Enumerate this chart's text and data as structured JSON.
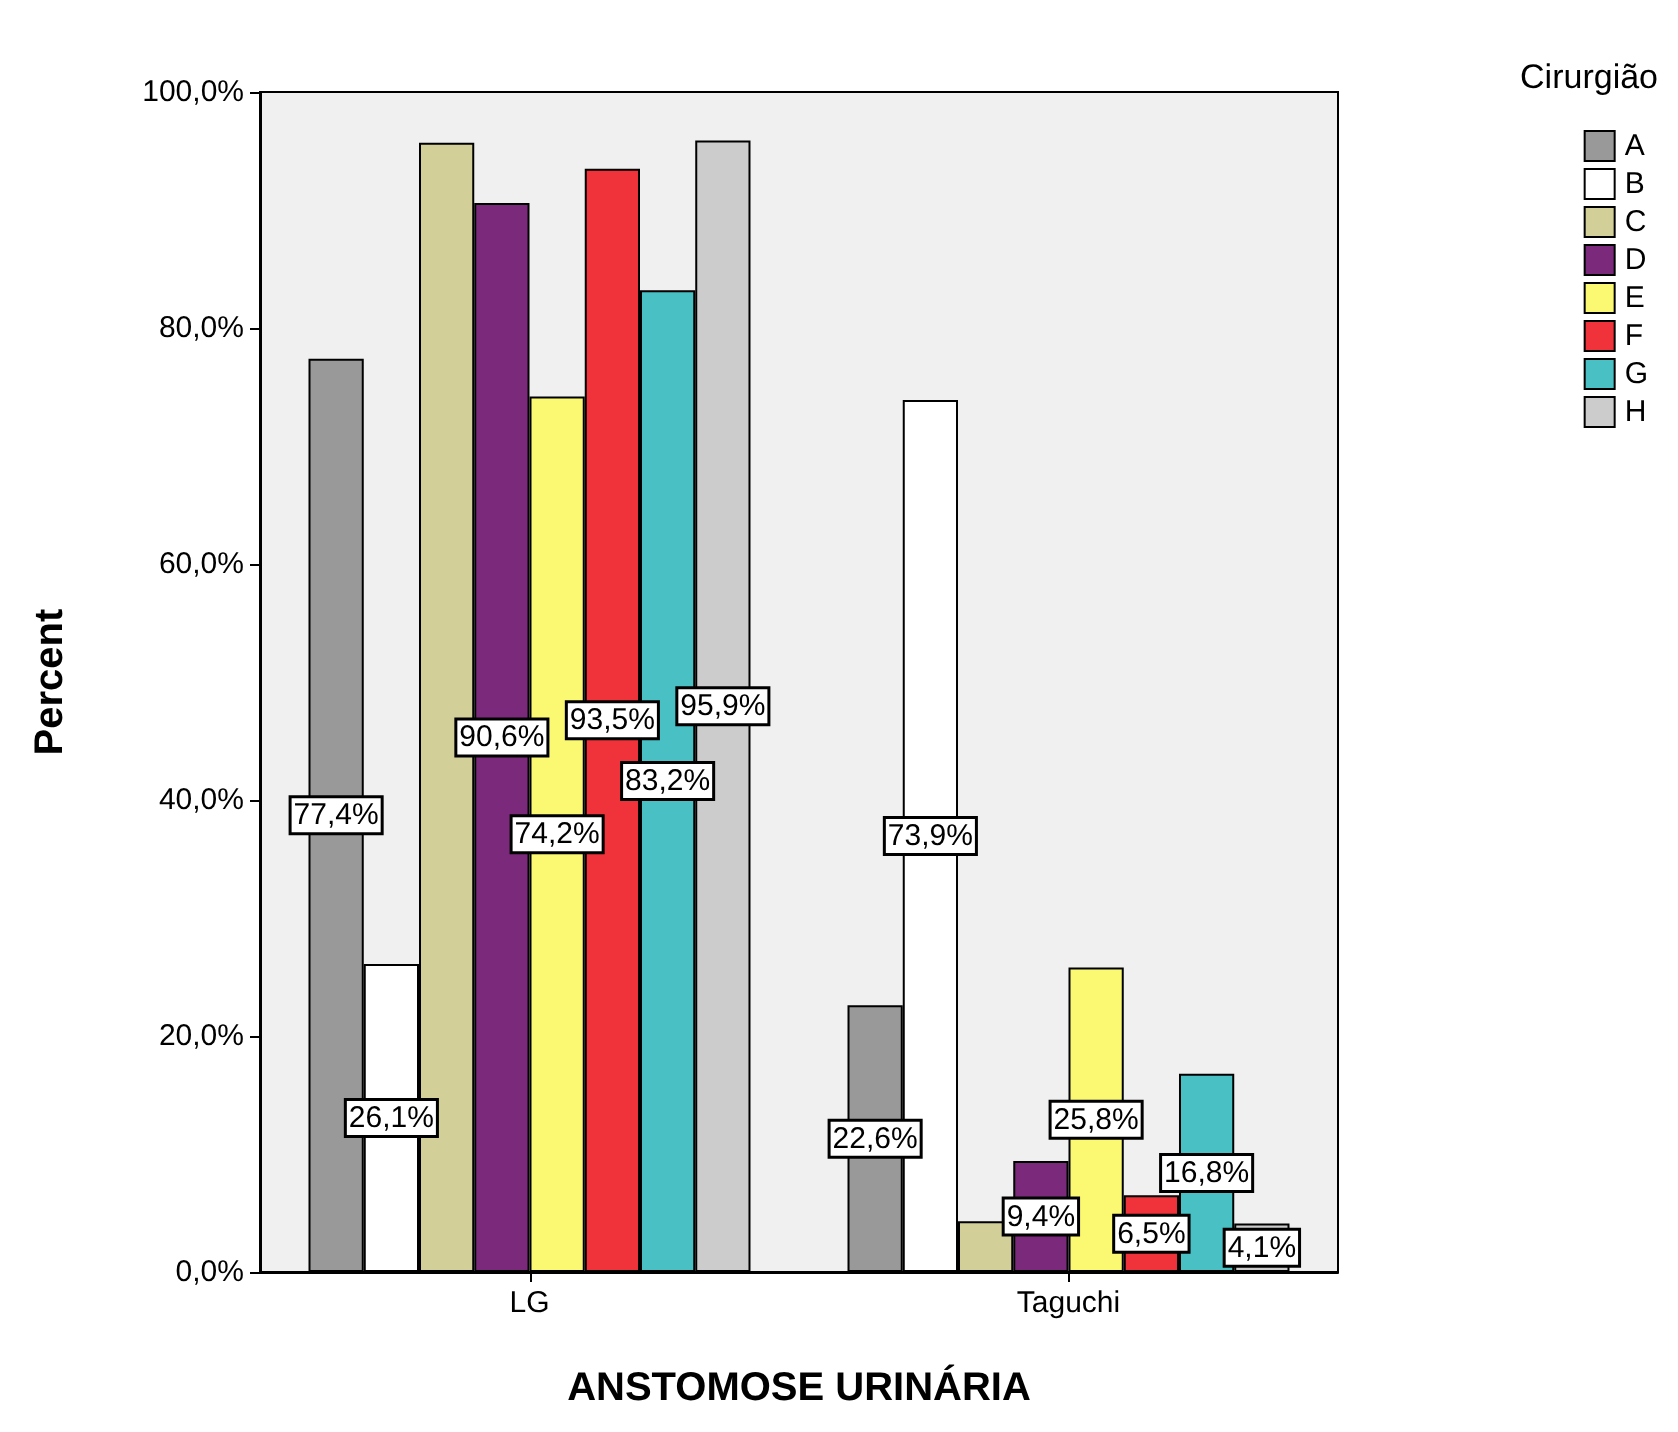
{
  "chart_data": {
    "type": "bar",
    "xlabel": "ANSTOMOSE URINÁRIA",
    "ylabel": "Percent",
    "legend_title": "Cirurgião",
    "legend": "top right",
    "grid": false,
    "categories": [
      "LG",
      "Taguchi"
    ],
    "ylim": [
      0,
      100
    ],
    "yticks": [
      {
        "value": 0,
        "label": "0,0%"
      },
      {
        "value": 20,
        "label": "20,0%"
      },
      {
        "value": 40,
        "label": "40,0%"
      },
      {
        "value": 60,
        "label": "60,0%"
      },
      {
        "value": 80,
        "label": "80,0%"
      },
      {
        "value": 100,
        "label": "100,0%"
      }
    ],
    "series": [
      {
        "name": "A",
        "color": "#999999",
        "values": [
          77.4,
          22.6
        ],
        "value_labels": [
          "77,4%",
          "22,6%"
        ]
      },
      {
        "name": "B",
        "color": "#ffffff",
        "values": [
          26.1,
          73.9
        ],
        "value_labels": [
          "26,1%",
          "73,9%"
        ]
      },
      {
        "name": "C",
        "color": "#d3cf98",
        "values": [
          95.7,
          4.3
        ],
        "value_labels": [
          null,
          null
        ]
      },
      {
        "name": "D",
        "color": "#7b2a7b",
        "values": [
          90.6,
          9.4
        ],
        "value_labels": [
          "90,6%",
          "9,4%"
        ]
      },
      {
        "name": "E",
        "color": "#fbf871",
        "values": [
          74.2,
          25.8
        ],
        "value_labels": [
          "74,2%",
          "25,8%"
        ]
      },
      {
        "name": "F",
        "color": "#f0323a",
        "values": [
          93.5,
          6.5
        ],
        "value_labels": [
          "93,5%",
          "6,5%"
        ]
      },
      {
        "name": "G",
        "color": "#48c0c4",
        "values": [
          83.2,
          16.8
        ],
        "value_labels": [
          "83,2%",
          "16,8%"
        ]
      },
      {
        "name": "H",
        "color": "#cccccc",
        "values": [
          95.9,
          4.1
        ],
        "value_labels": [
          "95,9%",
          "4,1%"
        ]
      }
    ]
  }
}
